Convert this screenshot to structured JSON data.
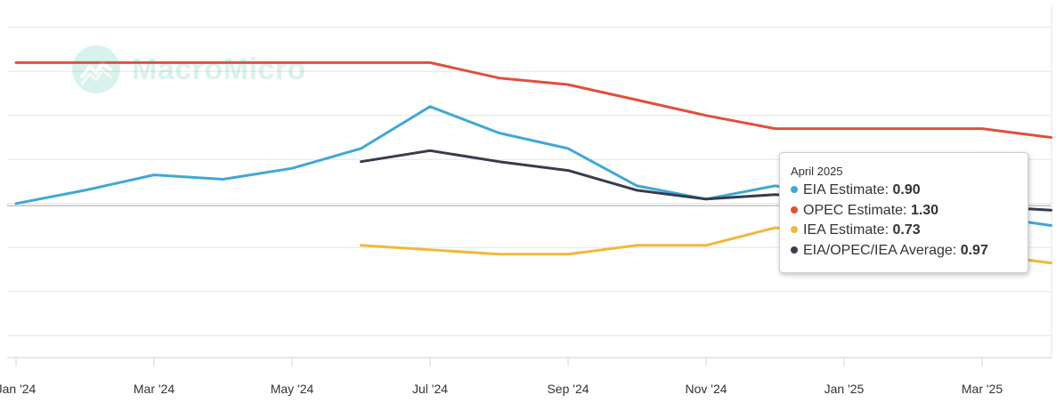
{
  "watermark": {
    "brand": "MacroMicro",
    "icon": "macromicro-logo-icon"
  },
  "chart_data": {
    "type": "line",
    "title": "",
    "xlabel": "",
    "ylabel": "",
    "grid": true,
    "x_tick_labels": [
      "Jan '24",
      "Mar '24",
      "May '24",
      "Jul '24",
      "Sep '24",
      "Nov '24",
      "Jan '25",
      "Mar '25"
    ],
    "x": [
      "2024-01",
      "2024-02",
      "2024-03",
      "2024-04",
      "2024-05",
      "2024-06",
      "2024-07",
      "2024-08",
      "2024-09",
      "2024-10",
      "2024-11",
      "2024-12",
      "2025-01",
      "2025-02",
      "2025-03",
      "2025-04"
    ],
    "ylim": [
      0.3,
      1.9
    ],
    "y_gridlines": [
      0.4,
      0.6,
      0.8,
      1.0,
      1.2,
      1.4,
      1.6,
      1.8
    ],
    "y_baseline": 0.99,
    "series": [
      {
        "name": "EIA Estimate",
        "color": "#41a8d6",
        "values": [
          1.0,
          1.06,
          1.13,
          1.11,
          1.16,
          1.25,
          1.44,
          1.32,
          1.25,
          1.08,
          1.02,
          1.08,
          null,
          null,
          null,
          0.9
        ]
      },
      {
        "name": "OPEC Estimate",
        "color": "#e0503c",
        "values": [
          1.64,
          1.64,
          1.64,
          1.64,
          1.64,
          1.64,
          1.64,
          1.57,
          1.54,
          1.47,
          1.4,
          1.34,
          1.34,
          1.34,
          1.34,
          1.3
        ]
      },
      {
        "name": "IEA Estimate",
        "color": "#f0b93b",
        "values": [
          null,
          null,
          null,
          null,
          null,
          0.81,
          0.79,
          0.77,
          0.77,
          0.81,
          0.81,
          0.89,
          null,
          null,
          null,
          0.73
        ]
      },
      {
        "name": "EIA/OPEC/IEA Average",
        "color": "#373c4e",
        "values": [
          null,
          null,
          null,
          null,
          null,
          1.19,
          1.24,
          1.19,
          1.15,
          1.06,
          1.02,
          1.04,
          null,
          null,
          null,
          0.97
        ]
      }
    ],
    "tooltip": {
      "title": "April 2025",
      "rows": [
        {
          "label": "EIA Estimate:",
          "value": "0.90",
          "color": "#41a8d6"
        },
        {
          "label": "OPEC Estimate:",
          "value": "1.30",
          "color": "#e0503c"
        },
        {
          "label": "IEA Estimate:",
          "value": "0.73",
          "color": "#f0b93b"
        },
        {
          "label": "EIA/OPEC/IEA Average:",
          "value": "0.97",
          "color": "#373c4e"
        }
      ]
    }
  }
}
